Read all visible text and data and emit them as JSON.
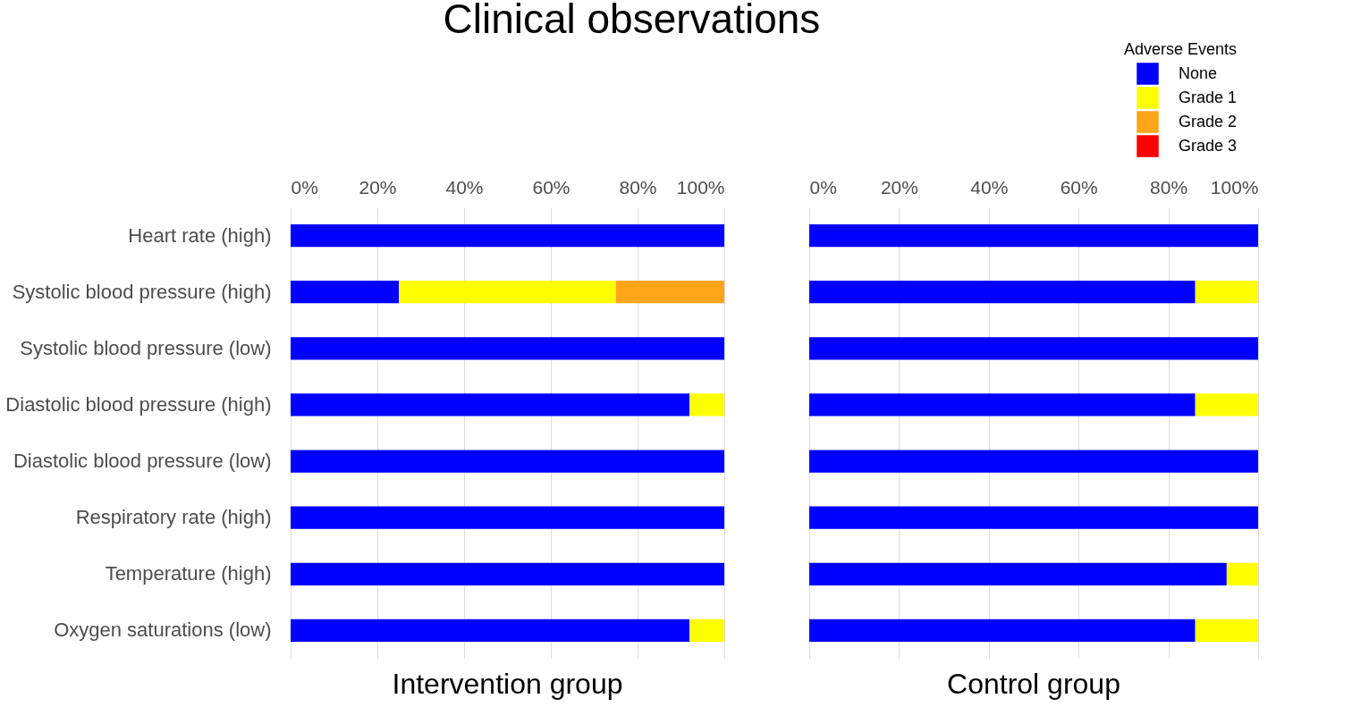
{
  "chart_data": [
    {
      "type": "bar",
      "title": "Clinical observations",
      "xlabel": "Intervention group",
      "orientation": "horizontal",
      "stacked": true,
      "categories": [
        "Heart rate (high)",
        "Systolic blood pressure (high)",
        "Systolic blood pressure (low)",
        "Diastolic blood pressure (high)",
        "Diastolic blood pressure (low)",
        "Respiratory rate (high)",
        "Temperature (high)",
        "Oxygen saturations (low)"
      ],
      "series": [
        {
          "name": "None",
          "color": "#0000ff",
          "values": [
            100,
            25,
            100,
            92,
            100,
            100,
            100,
            92
          ]
        },
        {
          "name": "Grade 1",
          "color": "#ffff00",
          "values": [
            0,
            50,
            0,
            8,
            0,
            0,
            0,
            8
          ]
        },
        {
          "name": "Grade 2",
          "color": "#ffa51a",
          "values": [
            0,
            25,
            0,
            0,
            0,
            0,
            0,
            0
          ]
        },
        {
          "name": "Grade 3",
          "color": "#ff0000",
          "values": [
            0,
            0,
            0,
            0,
            0,
            0,
            0,
            0
          ]
        }
      ],
      "xlim": [
        0,
        100
      ],
      "xticks": [
        {
          "value": 0,
          "label": "0%"
        },
        {
          "value": 20,
          "label": "20%"
        },
        {
          "value": 40,
          "label": "40%"
        },
        {
          "value": 60,
          "label": "60%"
        },
        {
          "value": 80,
          "label": "80%"
        },
        {
          "value": 100,
          "label": "100%"
        }
      ],
      "grid": "x",
      "legend": "top right",
      "legend_title": "Adverse Events"
    },
    {
      "type": "bar",
      "xlabel": "Control group",
      "orientation": "horizontal",
      "stacked": true,
      "categories": [
        "Heart rate (high)",
        "Systolic blood pressure (high)",
        "Systolic blood pressure (low)",
        "Diastolic blood pressure (high)",
        "Diastolic blood pressure (low)",
        "Respiratory rate (high)",
        "Temperature (high)",
        "Oxygen saturations (low)"
      ],
      "series": [
        {
          "name": "None",
          "color": "#0000ff",
          "values": [
            100,
            86,
            100,
            86,
            100,
            100,
            93,
            86
          ]
        },
        {
          "name": "Grade 1",
          "color": "#ffff00",
          "values": [
            0,
            14,
            0,
            14,
            0,
            0,
            7,
            14
          ]
        },
        {
          "name": "Grade 2",
          "color": "#ffa51a",
          "values": [
            0,
            0,
            0,
            0,
            0,
            0,
            0,
            0
          ]
        }
      ],
      "xlim": [
        0,
        100
      ],
      "xticks": [
        {
          "value": 0,
          "label": "0%"
        },
        {
          "value": 20,
          "label": "20%"
        },
        {
          "value": 40,
          "label": "40%"
        },
        {
          "value": 60,
          "label": "60%"
        },
        {
          "value": 80,
          "label": "80%"
        },
        {
          "value": 100,
          "label": "100%"
        }
      ],
      "grid": "x",
      "tick_labels": "x"
    }
  ]
}
